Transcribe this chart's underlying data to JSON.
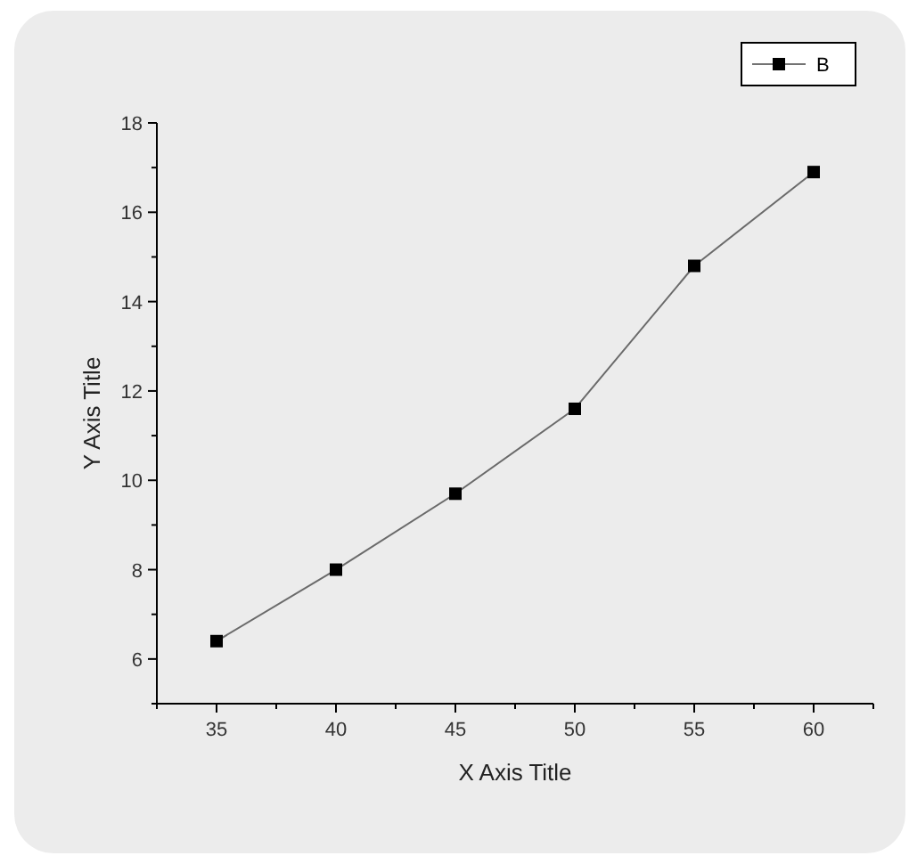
{
  "chart_data": {
    "type": "line",
    "xlabel": "X Axis Title",
    "ylabel": "Y Axis Title",
    "x": [
      35,
      40,
      45,
      50,
      55,
      60
    ],
    "series": [
      {
        "name": "B",
        "color": "#000000",
        "values": [
          6.4,
          8.0,
          9.7,
          11.6,
          14.8,
          16.9
        ]
      }
    ],
    "xlim": [
      32.5,
      62.5
    ],
    "ylim": [
      5,
      18
    ],
    "xticks": [
      {
        "value": 32.5,
        "label": null
      },
      35,
      {
        "value": 37.5,
        "label": null
      },
      40,
      {
        "value": 42.5,
        "label": null
      },
      45,
      {
        "value": 47.5,
        "label": null
      },
      50,
      {
        "value": 52.5,
        "label": null
      },
      55,
      {
        "value": 57.5,
        "label": null
      },
      60,
      {
        "value": 62.5,
        "label": null
      }
    ],
    "yticks": [
      {
        "value": 5,
        "label": null
      },
      6,
      {
        "value": 7,
        "label": null
      },
      8,
      {
        "value": 9,
        "label": null
      },
      10,
      {
        "value": 11,
        "label": null
      },
      12,
      {
        "value": 13,
        "label": null
      },
      14,
      {
        "value": 15,
        "label": null
      },
      16,
      {
        "value": 17,
        "label": null
      },
      18
    ],
    "grid": false,
    "legend": "top right",
    "marker": "square",
    "line_style": "solid"
  }
}
